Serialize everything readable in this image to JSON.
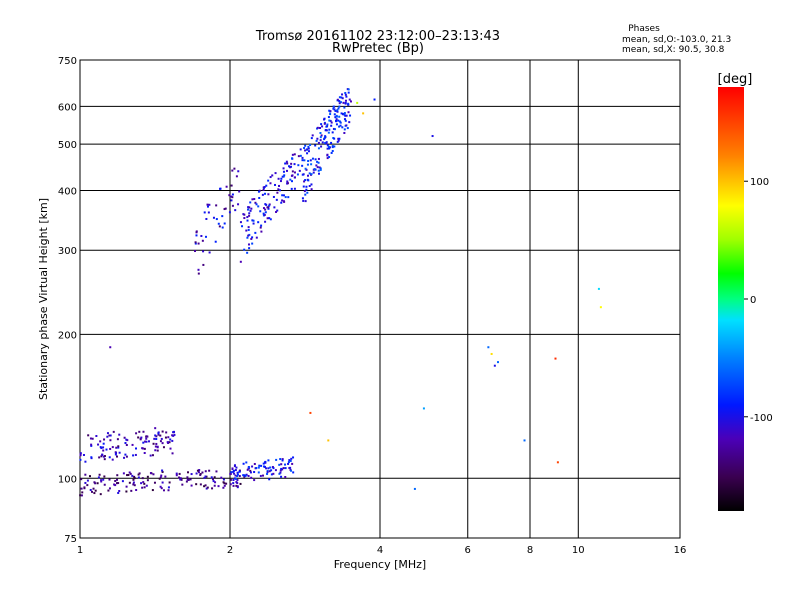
{
  "chart_data": {
    "type": "scatter",
    "title": "Tromsø 20161102 23:12:00–23:13:43",
    "subtitle": "RwPretec (Bp)",
    "xlabel": "Frequency [MHz]",
    "ylabel": "Stationary phase Virtual Height [km]",
    "x_scale": "log2",
    "y_scale": "log",
    "xlim": [
      1,
      16
    ],
    "ylim": [
      75,
      750
    ],
    "x_ticks": [
      1,
      2,
      4,
      6,
      8,
      10,
      16
    ],
    "x_tick_labels": [
      "1",
      "2",
      "4",
      "6",
      "8",
      "10",
      "16"
    ],
    "y_ticks": [
      75,
      100,
      200,
      300,
      400,
      500,
      600,
      750
    ],
    "y_tick_labels": [
      "75",
      "100",
      "200",
      "300",
      "400",
      "500",
      "600",
      "750"
    ],
    "grid": true,
    "phase_stats": {
      "heading": "Phases",
      "line_o": "mean, sd,O:-103.0, 21.3",
      "line_x": "mean, sd,X:  90.5, 30.8"
    },
    "colorbar": {
      "label": "[deg]",
      "range": [
        -180,
        180
      ],
      "ticks": [
        100,
        0,
        -100
      ],
      "tick_labels": [
        "100",
        "0",
        "-100"
      ]
    },
    "clusters": [
      {
        "x_range": [
          1.0,
          1.55
        ],
        "y_center": 118,
        "y_spread": 8,
        "count": 120,
        "phase": -120
      },
      {
        "x_range": [
          1.0,
          2.2
        ],
        "y_center": 99,
        "y_spread": 5,
        "count": 160,
        "phase": -130
      },
      {
        "x_range": [
          2.0,
          2.7
        ],
        "y_center": 104,
        "y_spread": 5,
        "count": 90,
        "phase": -95
      },
      {
        "x_range": [
          1.7,
          2.1
        ],
        "y_center": 360,
        "y_spread": 45,
        "count": 50,
        "phase": -110
      },
      {
        "x_range": [
          2.1,
          2.8
        ],
        "y_center": 390,
        "y_spread": 40,
        "count": 140,
        "phase": -100
      },
      {
        "x_range": [
          2.8,
          3.5
        ],
        "y_center": 520,
        "y_spread": 60,
        "count": 190,
        "phase": -90
      }
    ],
    "points": [
      {
        "x": 1.15,
        "y": 188,
        "phase": -120
      },
      {
        "x": 2.9,
        "y": 137,
        "phase": 150
      },
      {
        "x": 3.15,
        "y": 120,
        "phase": 100
      },
      {
        "x": 3.6,
        "y": 610,
        "phase": 60
      },
      {
        "x": 3.7,
        "y": 580,
        "phase": 100
      },
      {
        "x": 3.9,
        "y": 620,
        "phase": -90
      },
      {
        "x": 4.9,
        "y": 140,
        "phase": -40
      },
      {
        "x": 4.7,
        "y": 95,
        "phase": -60
      },
      {
        "x": 5.1,
        "y": 520,
        "phase": -100
      },
      {
        "x": 6.6,
        "y": 188,
        "phase": -60
      },
      {
        "x": 6.7,
        "y": 182,
        "phase": 90
      },
      {
        "x": 6.8,
        "y": 172,
        "phase": -100
      },
      {
        "x": 6.9,
        "y": 175,
        "phase": -60
      },
      {
        "x": 7.8,
        "y": 120,
        "phase": -60
      },
      {
        "x": 9.0,
        "y": 178,
        "phase": 160
      },
      {
        "x": 9.1,
        "y": 108,
        "phase": 150
      },
      {
        "x": 11.0,
        "y": 249,
        "phase": -20
      },
      {
        "x": 11.1,
        "y": 228,
        "phase": 80
      }
    ]
  }
}
